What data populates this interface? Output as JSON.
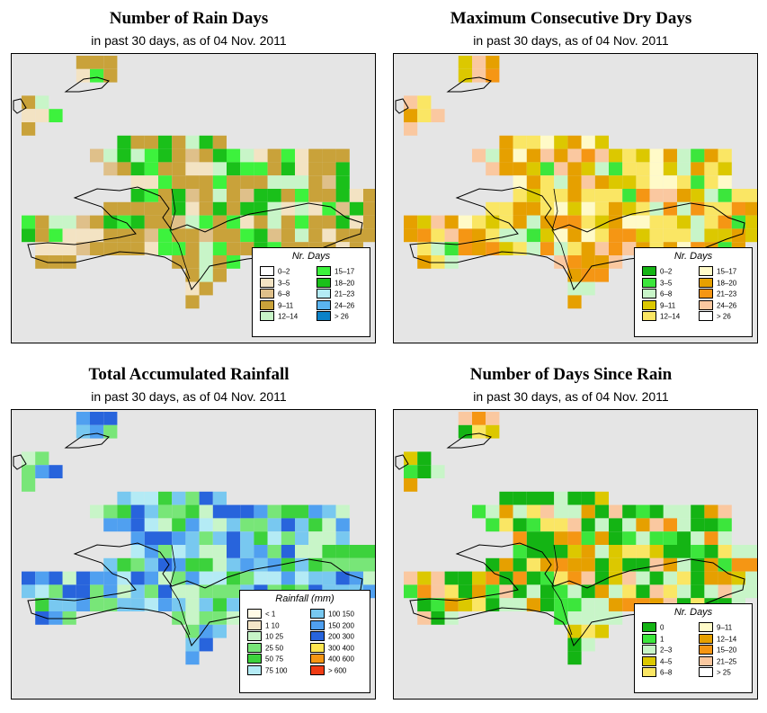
{
  "panels": [
    {
      "title": "Number of Rain Days",
      "subtitle": "in past 30 days, as of  04 Nov. 2011",
      "legend": {
        "title": "Nr. Days",
        "items": [
          {
            "label": "0–2",
            "color": "#ffffff"
          },
          {
            "label": "3–5",
            "color": "#f3e3c3"
          },
          {
            "label": "6–8",
            "color": "#dfc08a"
          },
          {
            "label": "9–11",
            "color": "#c9a23a"
          },
          {
            "label": "12–14",
            "color": "#c8f5c8"
          },
          {
            "label": "15–17",
            "color": "#3df23d"
          },
          {
            "label": "18–20",
            "color": "#1ac01a"
          },
          {
            "label": "21–23",
            "color": "#b4ebf5"
          },
          {
            "label": "24–26",
            "color": "#5ab4f0"
          },
          {
            "label": "> 26",
            "color": "#0a82c8"
          }
        ]
      }
    },
    {
      "title": "Maximum Consecutive Dry Days",
      "subtitle": "in past 30 days, as of  04 Nov. 2011",
      "legend": {
        "title": "Nr. Days",
        "items": [
          {
            "label": "0–2",
            "color": "#14b414"
          },
          {
            "label": "3–5",
            "color": "#3ce63c"
          },
          {
            "label": "6–8",
            "color": "#c8f5c8"
          },
          {
            "label": "9–11",
            "color": "#dcc800"
          },
          {
            "label": "12–14",
            "color": "#fae664"
          },
          {
            "label": "15–17",
            "color": "#fffac8"
          },
          {
            "label": "18–20",
            "color": "#e6a000"
          },
          {
            "label": "21–23",
            "color": "#f59614"
          },
          {
            "label": "24–26",
            "color": "#fac8a0"
          },
          {
            "label": "> 26",
            "color": "#ffffff"
          }
        ]
      }
    },
    {
      "title": "Total Accumulated Rainfall",
      "subtitle": "in past 30 days, as of  04 Nov. 2011",
      "legend": {
        "title": "Rainfall (mm)",
        "items": [
          {
            "label": "< 1",
            "color": "#fffae6"
          },
          {
            "label": "1   10",
            "color": "#f5e6c8"
          },
          {
            "label": "10   25",
            "color": "#c8f5c8"
          },
          {
            "label": "25   50",
            "color": "#78e678"
          },
          {
            "label": "50   75",
            "color": "#3cd23c"
          },
          {
            "label": "75  100",
            "color": "#b4ebf5"
          },
          {
            "label": "100  150",
            "color": "#78c8f0"
          },
          {
            "label": "150  200",
            "color": "#50a0f0"
          },
          {
            "label": "200  300",
            "color": "#2864dc"
          },
          {
            "label": "300  400",
            "color": "#ffe650"
          },
          {
            "label": "400  600",
            "color": "#f59614"
          },
          {
            "label": "> 600",
            "color": "#f03c14"
          }
        ]
      }
    },
    {
      "title": "Number of Days Since Rain",
      "subtitle": "in past 30 days, as of  04 Nov. 2011",
      "legend": {
        "title": "Nr. Days",
        "items": [
          {
            "label": "0",
            "color": "#14b414"
          },
          {
            "label": "1",
            "color": "#3ce63c"
          },
          {
            "label": "2–3",
            "color": "#c8f5c8"
          },
          {
            "label": "4–5",
            "color": "#dcc800"
          },
          {
            "label": "6–8",
            "color": "#fae664"
          },
          {
            "label": "9–11",
            "color": "#fffac8"
          },
          {
            "label": "12–14",
            "color": "#e6a000"
          },
          {
            "label": "15–20",
            "color": "#f59614"
          },
          {
            "label": "21–25",
            "color": "#fac8a0"
          },
          {
            "label": "> 25",
            "color": "#ffffff"
          }
        ]
      }
    }
  ]
}
